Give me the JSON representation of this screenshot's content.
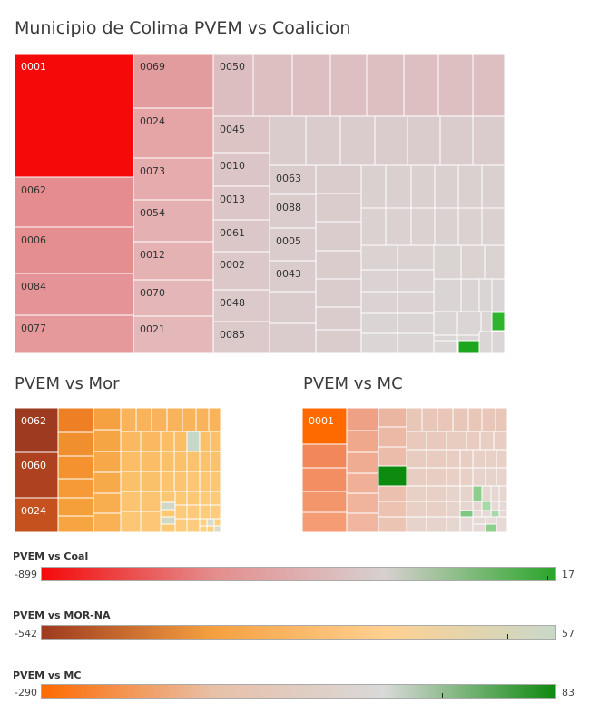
{
  "titles": {
    "main": "Municipio de Colima PVEM vs Coalicion",
    "mor": "PVEM vs Mor",
    "mc": "PVEM vs MC"
  },
  "chart_data": [
    {
      "type": "treemap",
      "title": "Municipio de Colima PVEM vs Coalicion",
      "labeled_cells": [
        "0001",
        "0062",
        "0006",
        "0084",
        "0077",
        "0069",
        "0024",
        "0073",
        "0054",
        "0012",
        "0070",
        "0021",
        "0050",
        "0045",
        "0010",
        "0013",
        "0061",
        "0002",
        "0048",
        "0085",
        "0063",
        "0088",
        "0005",
        "0043"
      ],
      "color_scale": {
        "min": -899,
        "max": 17
      }
    },
    {
      "type": "treemap",
      "title": "PVEM vs Mor",
      "labeled_cells": [
        "0062",
        "0060",
        "0024"
      ],
      "color_scale": {
        "min": -542,
        "max": 57
      }
    },
    {
      "type": "treemap",
      "title": "PVEM vs MC",
      "labeled_cells": [
        "0001"
      ],
      "color_scale": {
        "min": -290,
        "max": 83
      }
    }
  ],
  "legends": [
    {
      "label": "PVEM vs Coal",
      "min": "-899",
      "max": "17",
      "colors": [
        "#f50a0a",
        "#e48c8c",
        "#d8d0d0",
        "#2aa52a"
      ]
    },
    {
      "label": "PVEM vs MOR-NA",
      "min": "-542",
      "max": "57",
      "colors": [
        "#9e3a1f",
        "#f5a040",
        "#ffd090",
        "#c9d8c9"
      ]
    },
    {
      "label": "PVEM vs MC",
      "min": "-290",
      "max": "83",
      "colors": [
        "#ff6a00",
        "#e8c0a8",
        "#d9d9d9",
        "#0e8a0e"
      ]
    }
  ]
}
